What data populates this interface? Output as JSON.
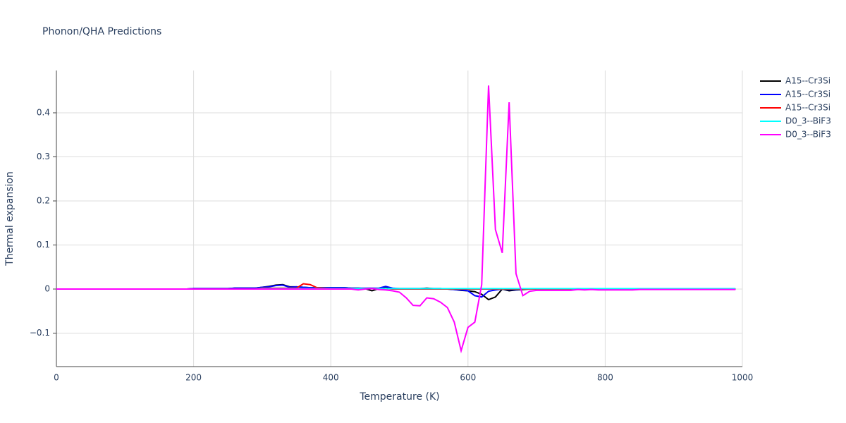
{
  "chart_data": {
    "type": "line",
    "title": "Phonon/QHA Predictions",
    "x_label": "Temperature (K)",
    "y_label": "Thermal expansion",
    "x": [
      0,
      10,
      20,
      30,
      40,
      50,
      60,
      70,
      80,
      90,
      100,
      110,
      120,
      130,
      140,
      150,
      160,
      170,
      180,
      190,
      200,
      210,
      220,
      230,
      240,
      250,
      260,
      270,
      280,
      290,
      300,
      310,
      320,
      330,
      340,
      350,
      360,
      370,
      380,
      390,
      400,
      410,
      420,
      430,
      440,
      450,
      460,
      470,
      480,
      490,
      500,
      510,
      520,
      530,
      540,
      550,
      560,
      570,
      580,
      590,
      600,
      610,
      620,
      630,
      640,
      650,
      660,
      670,
      680,
      690,
      700,
      710,
      720,
      730,
      740,
      750,
      760,
      770,
      780,
      790,
      800,
      810,
      820,
      830,
      840,
      850,
      860,
      870,
      880,
      890,
      900,
      910,
      920,
      930,
      940,
      950,
      960,
      970,
      980,
      990
    ],
    "series": [
      {
        "name": "A15--Cr3Si",
        "color": "#000000",
        "values": [
          0,
          0,
          0,
          0,
          0,
          0,
          0,
          0,
          0,
          0,
          0,
          0,
          0,
          0,
          0,
          0,
          0,
          0,
          0,
          0,
          0.001,
          0.001,
          0.001,
          0.001,
          0.001,
          0.001,
          0.002,
          0.002,
          0.002,
          0.002,
          0.004,
          0.006,
          0.009,
          0.01,
          0.005,
          0.005,
          0.004,
          0.003,
          0.003,
          0.003,
          0.003,
          0.003,
          0.003,
          0.002,
          0.002,
          0.001,
          -0.004,
          0.001,
          0.005,
          0.001,
          0.001,
          0.001,
          0.001,
          0.001,
          0.002,
          0.001,
          0.001,
          0,
          -0.001,
          -0.003,
          -0.004,
          -0.006,
          -0.012,
          -0.024,
          -0.018,
          0,
          -0.004,
          -0.002,
          -0.001,
          0,
          0,
          0,
          0,
          0,
          0,
          0,
          0,
          0,
          0,
          0,
          0,
          0,
          0,
          0,
          0,
          0,
          0,
          0,
          0,
          0,
          0,
          0,
          0,
          0,
          0,
          0,
          0,
          0,
          0,
          0
        ]
      },
      {
        "name": "A15--Cr3Si",
        "color": "#0000ff",
        "values": [
          0,
          0,
          0,
          0,
          0,
          0,
          0,
          0,
          0,
          0,
          0,
          0,
          0,
          0,
          0,
          0,
          0,
          0,
          0,
          0,
          0.001,
          0.001,
          0.001,
          0.001,
          0.001,
          0.001,
          0.002,
          0.002,
          0.002,
          0.002,
          0.004,
          0.005,
          0.008,
          0.009,
          0.004,
          0.005,
          0.004,
          0.003,
          0.003,
          0.003,
          0.003,
          0.003,
          0.003,
          0.002,
          0.002,
          0.002,
          0.002,
          0.002,
          0.006,
          0.002,
          0.001,
          0.001,
          0.001,
          0.001,
          0.001,
          0.001,
          0.001,
          0,
          -0.001,
          -0.002,
          -0.004,
          -0.015,
          -0.018,
          -0.005,
          -0.002,
          0,
          -0.001,
          -0.001,
          0,
          0,
          0,
          0,
          0,
          0,
          0,
          0,
          0,
          0,
          0,
          0,
          0,
          0,
          0,
          0,
          0,
          0,
          0,
          0,
          0,
          0,
          0,
          0,
          0,
          0,
          0,
          0,
          0,
          0,
          0,
          0
        ]
      },
      {
        "name": "A15--Cr3Si",
        "color": "#ff0000",
        "values": [
          0,
          0,
          0,
          0,
          0,
          0,
          0,
          0,
          0,
          0,
          0,
          0,
          0,
          0,
          0,
          0,
          0,
          0,
          0,
          0,
          0,
          0,
          0,
          0,
          0,
          0,
          0,
          0,
          0,
          0,
          0.002,
          0.002,
          0.002,
          0.002,
          0.002,
          0.002,
          0.012,
          0.01,
          0.003,
          0.002,
          0.001,
          0.001,
          0.001,
          0.001,
          0.001,
          0.001,
          0.001,
          0.001,
          0.001,
          0,
          0,
          0,
          0,
          0,
          0,
          0,
          0,
          0,
          0,
          0,
          0,
          0,
          0,
          0,
          0,
          0,
          0,
          0,
          0,
          0,
          0,
          0,
          0,
          0,
          0,
          0,
          0,
          0,
          0,
          0,
          0,
          0,
          0,
          0,
          0,
          0,
          0,
          0,
          0,
          0,
          0,
          0,
          0,
          0,
          0,
          0,
          0,
          0,
          0,
          0
        ]
      },
      {
        "name": "D0_3--BiF3",
        "color": "#00ffff",
        "values": [
          0,
          0,
          0,
          0,
          0,
          0,
          0,
          0,
          0,
          0,
          0,
          0,
          0,
          0,
          0,
          0,
          0,
          0,
          0,
          0,
          0,
          0,
          0,
          0,
          0,
          0,
          0,
          0,
          0,
          0,
          0.001,
          0.001,
          0.001,
          0.001,
          0.001,
          0.001,
          0.001,
          0.001,
          0.001,
          0.001,
          0.001,
          0.001,
          0.001,
          0.001,
          0.001,
          0.001,
          0.001,
          0.001,
          0.001,
          0.001,
          0.001,
          0.001,
          0.001,
          0.001,
          0.001,
          0.001,
          0.001,
          0.001,
          0.001,
          0.001,
          0.001,
          0.001,
          0.001,
          0.001,
          0.001,
          0.001,
          0.001,
          0.001,
          0.001,
          0.001,
          0.001,
          0.001,
          0.001,
          0.001,
          0.001,
          0.001,
          0.001,
          0.001,
          0.001,
          0.001,
          0.001,
          0.001,
          0.001,
          0.001,
          0.001,
          0.001,
          0.001,
          0.001,
          0.001,
          0.001,
          0.001,
          0.001,
          0.001,
          0.001,
          0.001,
          0.001,
          0.001,
          0.001,
          0.001,
          0.001
        ]
      },
      {
        "name": "D0_3--BiF3",
        "color": "#ff00ff",
        "values": [
          0,
          0,
          0,
          0,
          0,
          0,
          0,
          0,
          0,
          0,
          0,
          0,
          0,
          0,
          0,
          0,
          0,
          0,
          0,
          0,
          0,
          0,
          0,
          0,
          0,
          0,
          0,
          0,
          0,
          0,
          0,
          0,
          0,
          0,
          0,
          0,
          0,
          0,
          0,
          0,
          0,
          0,
          0,
          0,
          -0.002,
          0,
          0.001,
          -0.001,
          -0.002,
          -0.004,
          -0.007,
          -0.02,
          -0.037,
          -0.038,
          -0.02,
          -0.022,
          -0.03,
          -0.042,
          -0.075,
          -0.14,
          -0.087,
          -0.075,
          0.01,
          0.462,
          0.135,
          0.082,
          0.424,
          0.035,
          -0.015,
          -0.005,
          -0.003,
          -0.003,
          -0.003,
          -0.003,
          -0.003,
          -0.003,
          -0.001,
          -0.002,
          -0.001,
          -0.002,
          -0.002,
          -0.002,
          -0.002,
          -0.002,
          -0.002,
          -0.001,
          -0.001,
          -0.001,
          -0.001,
          -0.001,
          -0.001,
          -0.001,
          -0.001,
          -0.001,
          -0.001,
          -0.001,
          -0.001,
          -0.001,
          -0.001,
          -0.001
        ]
      }
    ],
    "xlim": [
      0,
      1000
    ],
    "xticks": [
      0,
      200,
      400,
      600,
      800,
      1000
    ],
    "ylim": [
      -0.176,
      0.496
    ],
    "yticks": [
      {
        "value": -0.1,
        "label": "−0.1"
      },
      0,
      0.1,
      0.2,
      0.3,
      0.4
    ],
    "grid": true,
    "legend": "top-right"
  }
}
